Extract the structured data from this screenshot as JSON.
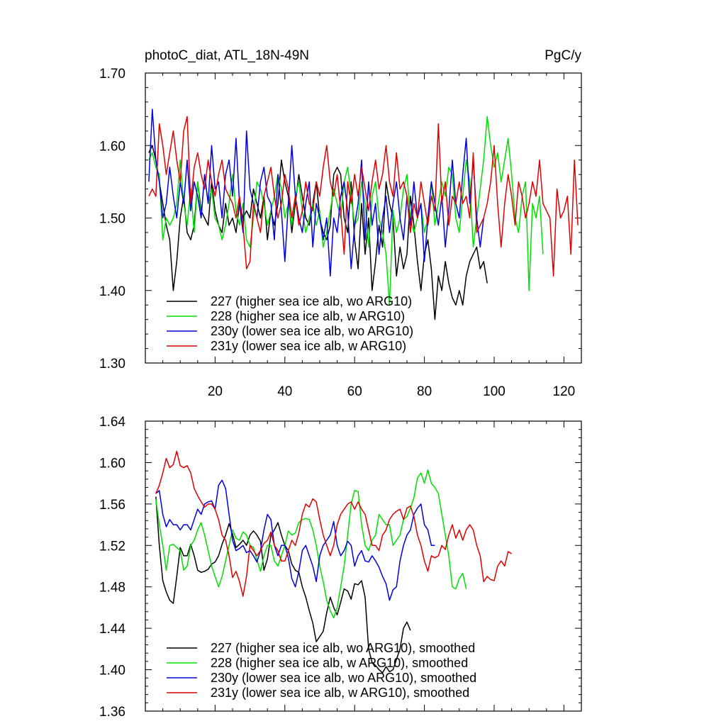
{
  "chart_data": [
    {
      "type": "line",
      "title_left": "photoC_diat, ATL_18N-49N",
      "title_right": "PgC/y",
      "xlabel": "",
      "ylabel": "",
      "xlim": [
        0,
        125
      ],
      "ylim": [
        1.3,
        1.7
      ],
      "xticks": [
        20,
        40,
        60,
        80,
        100,
        120
      ],
      "xtick_labels": [
        "20",
        "40",
        "60",
        "80",
        "100",
        "120"
      ],
      "yticks": [
        1.3,
        1.4,
        1.5,
        1.6,
        1.7
      ],
      "ytick_labels": [
        "1.30",
        "1.40",
        "1.50",
        "1.60",
        "1.70"
      ],
      "legend_position": "bottom-left",
      "series": [
        {
          "name": "227 (higher sea ice alb, wo ARG10)",
          "color": "#000000",
          "x_start": 1,
          "values": [
            1.59,
            1.6,
            1.58,
            1.55,
            1.52,
            1.49,
            1.47,
            1.4,
            1.44,
            1.5,
            1.53,
            1.48,
            1.47,
            1.49,
            1.55,
            1.51,
            1.5,
            1.49,
            1.55,
            1.51,
            1.49,
            1.48,
            1.52,
            1.49,
            1.5,
            1.48,
            1.52,
            1.5,
            1.51,
            1.5,
            1.54,
            1.52,
            1.5,
            1.53,
            1.47,
            1.51,
            1.49,
            1.52,
            1.58,
            1.55,
            1.53,
            1.48,
            1.52,
            1.56,
            1.53,
            1.5,
            1.49,
            1.52,
            1.55,
            1.5,
            1.48,
            1.47,
            1.49,
            1.56,
            1.57,
            1.56,
            1.5,
            1.48,
            1.55,
            1.47,
            1.43,
            1.52,
            1.45,
            1.5,
            1.4,
            1.44,
            1.49,
            1.46,
            1.55,
            1.52,
            1.5,
            1.42,
            1.46,
            1.43,
            1.45,
            1.53,
            1.49,
            1.44,
            1.4,
            1.45,
            1.47,
            1.43,
            1.36,
            1.42,
            1.4,
            1.44,
            1.41,
            1.39,
            1.38,
            1.4,
            1.38,
            1.42,
            1.44,
            1.45,
            1.46,
            1.43,
            1.44,
            1.41
          ]
        },
        {
          "name": "228 (higher sea ice alb, w ARG10)",
          "color": "#00e000",
          "x_start": 1,
          "values": [
            1.58,
            1.59,
            1.57,
            1.56,
            1.47,
            1.5,
            1.49,
            1.5,
            1.52,
            1.58,
            1.52,
            1.49,
            1.54,
            1.48,
            1.55,
            1.5,
            1.56,
            1.52,
            1.54,
            1.5,
            1.49,
            1.47,
            1.49,
            1.52,
            1.56,
            1.51,
            1.49,
            1.52,
            1.47,
            1.46,
            1.5,
            1.55,
            1.54,
            1.52,
            1.49,
            1.51,
            1.53,
            1.56,
            1.54,
            1.5,
            1.52,
            1.49,
            1.53,
            1.55,
            1.51,
            1.48,
            1.5,
            1.52,
            1.49,
            1.51,
            1.46,
            1.48,
            1.51,
            1.54,
            1.52,
            1.5,
            1.55,
            1.57,
            1.53,
            1.49,
            1.5,
            1.55,
            1.52,
            1.46,
            1.53,
            1.55,
            1.5,
            1.48,
            1.45,
            1.38,
            1.51,
            1.48,
            1.5,
            1.54,
            1.56,
            1.5,
            1.48,
            1.5,
            1.52,
            1.48,
            1.5,
            1.55,
            1.49,
            1.52,
            1.55,
            1.53,
            1.57,
            1.56,
            1.5,
            1.48,
            1.53,
            1.58,
            1.55,
            1.46,
            1.5,
            1.54,
            1.58,
            1.64,
            1.6,
            1.57,
            1.59,
            1.55,
            1.58,
            1.61,
            1.56,
            1.5,
            1.48,
            1.53,
            1.55,
            1.4,
            1.52,
            1.5,
            1.53,
            1.45
          ]
        },
        {
          "name": "230y (lower sea ice alb, wo ARG10)",
          "color": "#0000e0",
          "x_start": 1,
          "values": [
            1.55,
            1.65,
            1.58,
            1.55,
            1.5,
            1.52,
            1.57,
            1.53,
            1.5,
            1.55,
            1.52,
            1.58,
            1.51,
            1.55,
            1.53,
            1.5,
            1.56,
            1.52,
            1.6,
            1.54,
            1.55,
            1.5,
            1.56,
            1.58,
            1.53,
            1.61,
            1.52,
            1.48,
            1.62,
            1.54,
            1.52,
            1.5,
            1.55,
            1.57,
            1.53,
            1.52,
            1.47,
            1.56,
            1.51,
            1.44,
            1.52,
            1.6,
            1.53,
            1.5,
            1.48,
            1.52,
            1.55,
            1.46,
            1.52,
            1.5,
            1.47,
            1.5,
            1.42,
            1.5,
            1.48,
            1.53,
            1.55,
            1.51,
            1.43,
            1.49,
            1.52,
            1.58,
            1.47,
            1.55,
            1.49,
            1.52,
            1.45,
            1.5,
            1.53,
            1.48,
            1.52,
            1.55,
            1.5,
            1.47,
            1.53,
            1.49,
            1.55,
            1.5,
            1.52,
            1.44,
            1.5,
            1.55,
            1.52,
            1.49,
            1.53,
            1.46,
            1.51,
            1.58,
            1.52,
            1.5,
            1.56,
            1.61,
            1.52,
            1.58,
            1.5,
            1.46,
            1.5
          ]
        },
        {
          "name": "231y (lower sea ice alb, w ARG10)",
          "color": "#e00000",
          "x_start": 1,
          "values": [
            1.53,
            1.54,
            1.53,
            1.63,
            1.6,
            1.56,
            1.59,
            1.62,
            1.58,
            1.55,
            1.62,
            1.64,
            1.52,
            1.57,
            1.59,
            1.56,
            1.54,
            1.58,
            1.55,
            1.53,
            1.56,
            1.58,
            1.54,
            1.53,
            1.52,
            1.5,
            1.53,
            1.49,
            1.43,
            1.44,
            1.52,
            1.5,
            1.48,
            1.53,
            1.55,
            1.57,
            1.53,
            1.5,
            1.52,
            1.56,
            1.54,
            1.5,
            1.53,
            1.49,
            1.51,
            1.55,
            1.52,
            1.51,
            1.55,
            1.53,
            1.57,
            1.6,
            1.55,
            1.53,
            1.56,
            1.51,
            1.45,
            1.55,
            1.52,
            1.56,
            1.53,
            1.57,
            1.54,
            1.51,
            1.55,
            1.58,
            1.54,
            1.56,
            1.6,
            1.55,
            1.53,
            1.59,
            1.54,
            1.55,
            1.53,
            1.48,
            1.52,
            1.5,
            1.55,
            1.52,
            1.49,
            1.53,
            1.51,
            1.63,
            1.52,
            1.55,
            1.49,
            1.53,
            1.52,
            1.55,
            1.52,
            1.53,
            1.5,
            1.59,
            1.48,
            1.49,
            1.5,
            1.52,
            1.55,
            1.6,
            1.52,
            1.46,
            1.52,
            1.56,
            1.53,
            1.49,
            1.55,
            1.53,
            1.5,
            1.52,
            1.55,
            1.53,
            1.58,
            1.52,
            1.51,
            1.5,
            1.42,
            1.54,
            1.5,
            1.51,
            1.53,
            1.45,
            1.58,
            1.49
          ]
        }
      ]
    },
    {
      "type": "line",
      "xlim": [
        0,
        125
      ],
      "ylim": [
        1.36,
        1.64
      ],
      "xticks": [
        20,
        40,
        60,
        80,
        100,
        120
      ],
      "yticks": [
        1.36,
        1.4,
        1.44,
        1.48,
        1.52,
        1.56,
        1.6,
        1.64
      ],
      "ytick_labels": [
        "1.36",
        "1.40",
        "1.44",
        "1.48",
        "1.52",
        "1.56",
        "1.60",
        "1.64"
      ],
      "legend_position": "bottom-left",
      "series": [
        {
          "name": "227 (higher sea ice alb, wo ARG10), smoothed",
          "color": "#000000",
          "x_start": 3,
          "values": [
            1.567,
            1.52,
            1.486,
            1.475,
            1.467,
            1.464,
            1.49,
            1.518,
            1.51,
            1.51,
            1.521,
            1.51,
            1.496,
            1.494,
            1.495,
            1.497,
            1.502,
            1.504,
            1.51,
            1.521,
            1.53,
            1.541,
            1.531,
            1.518,
            1.521,
            1.525,
            1.52,
            1.53,
            1.534,
            1.53,
            1.524,
            1.496,
            1.507,
            1.53,
            1.535,
            1.542,
            1.53,
            1.52,
            1.515,
            1.502,
            1.496,
            1.494,
            1.48,
            1.47,
            1.457,
            1.445,
            1.427,
            1.432,
            1.437,
            1.455,
            1.47,
            1.46,
            1.453,
            1.465,
            1.478,
            1.476,
            1.468,
            1.483,
            1.482,
            1.486,
            1.47,
            1.42,
            1.407,
            1.404,
            1.4,
            1.397,
            1.403,
            1.398,
            1.4,
            1.41,
            1.42,
            1.44,
            1.446,
            1.438
          ]
        },
        {
          "name": "228 (higher sea ice alb, w ARG10), smoothed",
          "color": "#00e000",
          "x_start": 3,
          "values": [
            1.565,
            1.54,
            1.52,
            1.496,
            1.52,
            1.521,
            1.518,
            1.515,
            1.496,
            1.5,
            1.52,
            1.525,
            1.535,
            1.542,
            1.53,
            1.515,
            1.5,
            1.49,
            1.48,
            1.49,
            1.505,
            1.52,
            1.535,
            1.527,
            1.525,
            1.533,
            1.53,
            1.52,
            1.518,
            1.506,
            1.495,
            1.51,
            1.52,
            1.52,
            1.505,
            1.5,
            1.51,
            1.52,
            1.534,
            1.53,
            1.532,
            1.542,
            1.545,
            1.546,
            1.545,
            1.535,
            1.52,
            1.5,
            1.485,
            1.467,
            1.457,
            1.45,
            1.46,
            1.48,
            1.5,
            1.53,
            1.56,
            1.573,
            1.572,
            1.54,
            1.52,
            1.515,
            1.525,
            1.53,
            1.55,
            1.545,
            1.54,
            1.54,
            1.52,
            1.525,
            1.53,
            1.545,
            1.548,
            1.556,
            1.566,
            1.585,
            1.59,
            1.58,
            1.593,
            1.58,
            1.576,
            1.57,
            1.55,
            1.53,
            1.51,
            1.48,
            1.478,
            1.488,
            1.493,
            1.478
          ]
        },
        {
          "name": "230y (lower sea ice alb, wo ARG10), smoothed",
          "color": "#0000e0",
          "x_start": 3,
          "values": [
            1.57,
            1.573,
            1.55,
            1.538,
            1.545,
            1.54,
            1.54,
            1.535,
            1.54,
            1.54,
            1.535,
            1.545,
            1.555,
            1.55,
            1.56,
            1.562,
            1.563,
            1.555,
            1.578,
            1.583,
            1.575,
            1.55,
            1.525,
            1.515,
            1.517,
            1.52,
            1.513,
            1.515,
            1.51,
            1.504,
            1.515,
            1.535,
            1.55,
            1.545,
            1.52,
            1.51,
            1.52,
            1.52,
            1.508,
            1.488,
            1.48,
            1.495,
            1.515,
            1.52,
            1.51,
            1.5,
            1.485,
            1.51,
            1.52,
            1.525,
            1.53,
            1.543,
            1.52,
            1.51,
            1.515,
            1.524,
            1.52,
            1.5,
            1.51,
            1.515,
            1.505,
            1.504,
            1.51,
            1.505,
            1.499,
            1.49,
            1.483,
            1.467,
            1.477,
            1.48,
            1.505,
            1.52,
            1.53,
            1.535,
            1.55,
            1.556,
            1.56,
            1.54,
            1.535,
            1.52,
            1.52
          ]
        },
        {
          "name": "231y (lower sea ice alb, w ARG10), smoothed",
          "color": "#e00000",
          "x_start": 3,
          "values": [
            1.57,
            1.578,
            1.59,
            1.604,
            1.595,
            1.598,
            1.611,
            1.597,
            1.595,
            1.597,
            1.59,
            1.575,
            1.568,
            1.562,
            1.557,
            1.56,
            1.56,
            1.555,
            1.545,
            1.53,
            1.525,
            1.51,
            1.489,
            1.495,
            1.485,
            1.471,
            1.49,
            1.52,
            1.515,
            1.51,
            1.515,
            1.522,
            1.525,
            1.533,
            1.52,
            1.515,
            1.505,
            1.505,
            1.515,
            1.525,
            1.52,
            1.532,
            1.55,
            1.56,
            1.557,
            1.565,
            1.562,
            1.545,
            1.53,
            1.52,
            1.51,
            1.52,
            1.54,
            1.55,
            1.555,
            1.56,
            1.562,
            1.555,
            1.562,
            1.555,
            1.55,
            1.535,
            1.52,
            1.52,
            1.515,
            1.53,
            1.535,
            1.545,
            1.55,
            1.553,
            1.555,
            1.545,
            1.556,
            1.558,
            1.548,
            1.53,
            1.52,
            1.505,
            1.495,
            1.51,
            1.508,
            1.51,
            1.52,
            1.516,
            1.53,
            1.54,
            1.527,
            1.535,
            1.525,
            1.535,
            1.54,
            1.535,
            1.52,
            1.51,
            1.485,
            1.49,
            1.487,
            1.486,
            1.5,
            1.505,
            1.5,
            1.514,
            1.512
          ]
        }
      ]
    }
  ]
}
